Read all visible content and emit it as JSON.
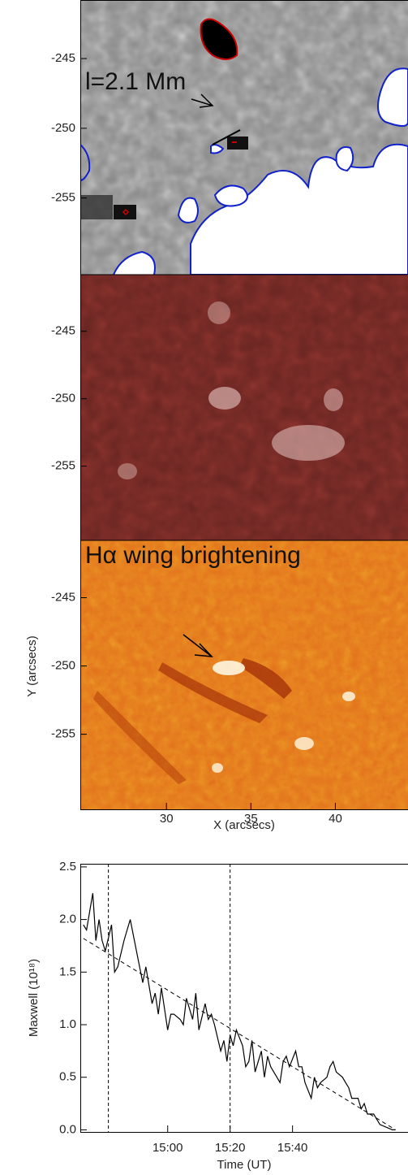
{
  "chart_data": [
    {
      "type": "image",
      "xlabel": "X (arcsecs)",
      "ylabel": "Y (arcsecs)",
      "xlim": [
        24.9,
        44.3
      ],
      "xticks": [
        30,
        35,
        40
      ],
      "ylim": [
        -260.5,
        -240.8
      ],
      "yticks": [
        -245,
        -250,
        -255
      ],
      "annotations": [
        "l=2.1 Mm",
        "Hα wing brightening"
      ]
    },
    {
      "type": "line",
      "xlabel": "Time (UT)",
      "ylabel": "Maxwell (10¹⁸)",
      "xlim": [
        "14:32",
        "16:17"
      ],
      "xticks": [
        "15:00",
        "15:20",
        "15:40"
      ],
      "ylim": [
        -0.02,
        2.53
      ],
      "yticks": [
        {
          "value": 0,
          "label": "0.0"
        },
        {
          "value": 0.5,
          "label": "0.5"
        },
        {
          "value": 1,
          "label": "1.0"
        },
        {
          "value": 1.5,
          "label": "1.5"
        },
        {
          "value": 2,
          "label": "2.0"
        },
        {
          "value": 2.5,
          "label": "2.5"
        }
      ],
      "x": [
        "14:33",
        "14:34",
        "14:36",
        "14:37",
        "14:38",
        "14:39",
        "14:40",
        "14:42",
        "14:43",
        "14:44",
        "14:46",
        "14:47",
        "14:48",
        "14:49",
        "14:51",
        "14:52",
        "14:53",
        "14:55",
        "14:56",
        "14:57",
        "14:58",
        "15:00",
        "15:01",
        "15:02",
        "15:04",
        "15:05",
        "15:06",
        "15:08",
        "15:09",
        "15:10",
        "15:12",
        "15:13",
        "15:14",
        "15:15",
        "15:17",
        "15:18",
        "15:19",
        "15:20",
        "15:21",
        "15:22",
        "15:24",
        "15:25",
        "15:26",
        "15:27",
        "15:28",
        "15:30",
        "15:31",
        "15:32",
        "15:33",
        "15:35",
        "15:36",
        "15:37",
        "15:38",
        "15:39",
        "15:41",
        "15:42",
        "15:43",
        "15:44",
        "15:46",
        "15:47",
        "15:48",
        "15:49",
        "15:51",
        "15:52",
        "15:53",
        "15:54",
        "15:56",
        "15:57",
        "15:58",
        "15:59",
        "16:01",
        "16:02",
        "16:03",
        "16:04",
        "16:06",
        "16:07",
        "16:08",
        "16:12",
        "16:13"
      ],
      "values": [
        1.95,
        1.9,
        2.25,
        1.8,
        2.0,
        1.8,
        1.7,
        1.95,
        1.5,
        1.55,
        1.8,
        1.9,
        2.0,
        1.85,
        1.55,
        1.4,
        1.55,
        1.2,
        1.3,
        1.1,
        1.35,
        0.95,
        1.1,
        1.1,
        1.05,
        1.0,
        1.25,
        1.05,
        1.3,
        0.95,
        1.2,
        1.05,
        1.1,
        1.0,
        0.75,
        0.85,
        0.65,
        0.9,
        0.8,
        0.95,
        0.8,
        0.6,
        0.65,
        0.85,
        0.55,
        0.75,
        0.5,
        0.7,
        0.6,
        0.5,
        0.45,
        0.65,
        0.7,
        0.6,
        0.75,
        0.6,
        0.6,
        0.45,
        0.3,
        0.5,
        0.4,
        0.45,
        0.5,
        0.6,
        0.65,
        0.55,
        0.5,
        0.45,
        0.4,
        0.3,
        0.3,
        0.2,
        0.25,
        0.15,
        0.15,
        0.1,
        0.05,
        0.0,
        0.0
      ],
      "color": "#000000",
      "trend_line": {
        "x": [
          "14:33",
          "16:13"
        ],
        "values": [
          1.82,
          0.0
        ]
      },
      "vertical_markers": [
        "14:41",
        "15:20"
      ]
    }
  ]
}
